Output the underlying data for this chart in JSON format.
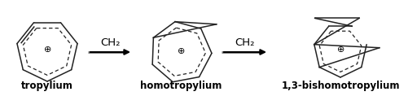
{
  "background": "#ffffff",
  "label1": "tropylium",
  "label2": "homotropylium",
  "label3": "1,3-bishomotropylium",
  "arrow_label": "CH₂",
  "label_fontsize": 8.5,
  "arrow_label_fontsize": 9.5,
  "plus_fontsize": 8,
  "fig_width": 5.01,
  "fig_height": 1.18,
  "line_color": "#222222",
  "arrow_color": "#666666",
  "lw": 1.1,
  "dash_lw": 0.9
}
